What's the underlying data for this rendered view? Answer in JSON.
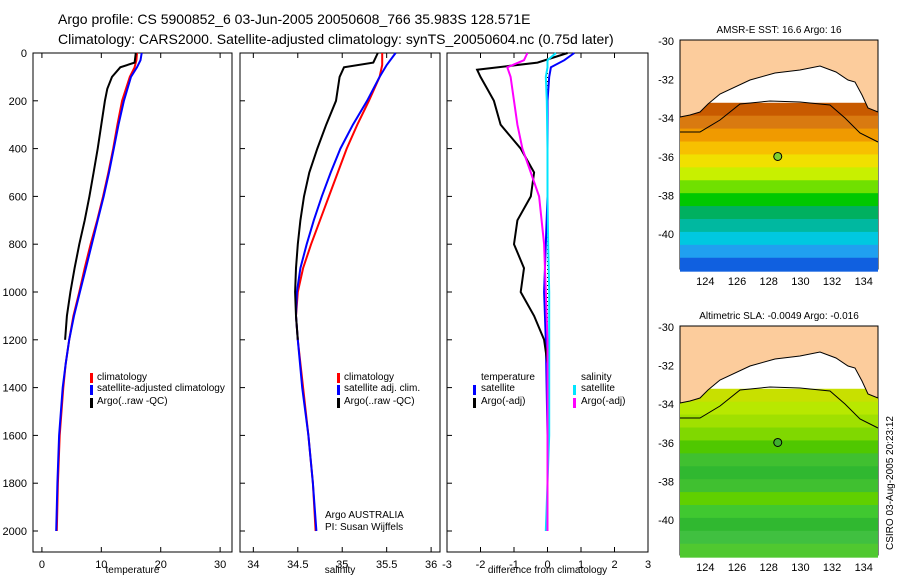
{
  "title_line1": "Argo profile: CS 5900852_6 03-Jun-2005 20050608_766 35.983S 128.571E",
  "title_line2": "Climatology: CARS2000. Satellite-adjusted climatology: synTS_20050604.nc (0.75d later)",
  "side_label": "CSIRO 03-Aug-2005 20:23:12",
  "colors": {
    "climatology": "#ff0000",
    "satellite": "#0000ff",
    "argo": "#000000",
    "sal_satellite": "#00e5ff",
    "sal_argo": "#ff00ff"
  },
  "chart_data": [
    {
      "type": "line",
      "xlabel": "temperature",
      "ylabel": "",
      "xlim": [
        -1.5,
        32
      ],
      "ylim": [
        2050,
        0
      ],
      "xticks": [
        "0",
        "10",
        "20",
        "30"
      ],
      "xtick_values": [
        0,
        10,
        20,
        30
      ],
      "yticks": [
        "0",
        "200",
        "400",
        "600",
        "800",
        "1000",
        "1200",
        "1400",
        "1600",
        "1800",
        "2000"
      ],
      "ytick_values": [
        0,
        200,
        400,
        600,
        800,
        1000,
        1200,
        1400,
        1600,
        1800,
        2000
      ],
      "legend": [
        "climatology",
        "satellite-adjusted climatology",
        "Argo(..raw -QC)"
      ],
      "series": [
        {
          "name": "climatology",
          "color": "#ff0000",
          "depth": [
            0,
            30,
            60,
            100,
            200,
            300,
            400,
            500,
            600,
            700,
            800,
            900,
            1000,
            1100,
            1200,
            1300,
            1400,
            1600,
            1800,
            2000
          ],
          "values": [
            16.0,
            15.9,
            15.6,
            14.8,
            13.5,
            12.7,
            12.0,
            11.2,
            10.3,
            9.3,
            8.2,
            7.2,
            6.3,
            5.3,
            4.6,
            4.0,
            3.6,
            3.0,
            2.7,
            2.5
          ]
        },
        {
          "name": "satellite-adjusted climatology",
          "color": "#0000ff",
          "depth": [
            0,
            30,
            60,
            100,
            200,
            300,
            400,
            500,
            600,
            700,
            800,
            900,
            1000,
            1100,
            1200,
            1300,
            1400,
            1600,
            1800,
            2000
          ],
          "values": [
            16.8,
            16.6,
            16.0,
            15.0,
            13.8,
            12.9,
            12.1,
            11.3,
            10.4,
            9.4,
            8.4,
            7.4,
            6.4,
            5.4,
            4.6,
            4.0,
            3.5,
            2.9,
            2.6,
            2.4
          ]
        },
        {
          "name": "Argo(..raw -QC)",
          "color": "#000000",
          "depth": [
            0,
            40,
            60,
            100,
            150,
            200,
            300,
            400,
            500,
            600,
            700,
            800,
            900,
            1000,
            1100,
            1200
          ],
          "values": [
            15.8,
            15.6,
            13.2,
            11.8,
            11.0,
            10.6,
            10.0,
            9.4,
            8.7,
            8.0,
            7.2,
            6.3,
            5.5,
            4.8,
            4.2,
            3.9
          ]
        }
      ]
    },
    {
      "type": "line",
      "xlabel": "salinity",
      "xlim": [
        33.85,
        36.1
      ],
      "ylim": [
        2050,
        0
      ],
      "xticks": [
        "34",
        "34.5",
        "35",
        "35.5",
        "36"
      ],
      "xtick_values": [
        34,
        34.5,
        35,
        35.5,
        36
      ],
      "legend": [
        "climatology",
        "satellite adj. clim.",
        "Argo(..raw -QC)"
      ],
      "annotation": [
        "Argo AUSTRALIA",
        "PI: Susan Wijffels"
      ],
      "series": [
        {
          "name": "climatology",
          "color": "#ff0000",
          "depth": [
            0,
            50,
            100,
            200,
            300,
            400,
            500,
            600,
            700,
            800,
            900,
            1000,
            1100,
            1200,
            1400,
            1600,
            1800,
            2000
          ],
          "values": [
            35.45,
            35.45,
            35.42,
            35.3,
            35.17,
            35.05,
            34.95,
            34.85,
            34.75,
            34.65,
            34.56,
            34.5,
            34.48,
            34.5,
            34.56,
            34.62,
            34.67,
            34.7
          ]
        },
        {
          "name": "satellite adj. clim.",
          "color": "#0000ff",
          "depth": [
            0,
            50,
            100,
            200,
            300,
            400,
            500,
            600,
            700,
            800,
            900,
            1000,
            1100,
            1200,
            1400,
            1600,
            1800,
            2000
          ],
          "values": [
            35.6,
            35.5,
            35.42,
            35.28,
            35.12,
            34.98,
            34.87,
            34.77,
            34.68,
            34.6,
            34.53,
            34.49,
            34.48,
            34.5,
            34.55,
            34.62,
            34.67,
            34.71
          ]
        },
        {
          "name": "Argo(..raw -QC)",
          "color": "#000000",
          "depth": [
            0,
            40,
            60,
            100,
            200,
            300,
            400,
            500,
            600,
            700,
            800,
            900,
            1000,
            1100,
            1200
          ],
          "values": [
            35.4,
            35.35,
            35.02,
            34.97,
            34.93,
            34.82,
            34.72,
            34.63,
            34.57,
            34.53,
            34.5,
            34.48,
            34.47,
            34.48,
            34.5
          ]
        }
      ]
    },
    {
      "type": "line",
      "xlabel": "difference from climatology",
      "xlim": [
        -3,
        3
      ],
      "ylim": [
        2050,
        0
      ],
      "xticks": [
        "-3",
        "-2",
        "-1",
        "0",
        "1",
        "2",
        "3"
      ],
      "xtick_values": [
        -3,
        -2,
        -1,
        0,
        1,
        2,
        3
      ],
      "legend_temperature": {
        "heading": "temperature",
        "items": [
          "satellite",
          "Argo(-adj)"
        ]
      },
      "legend_salinity": {
        "heading": "salinity",
        "items": [
          "satellite",
          "Argo(-adj)"
        ]
      },
      "series": [
        {
          "name": "temperature satellite",
          "color": "#0000ff",
          "depth": [
            0,
            30,
            60,
            100,
            200,
            400,
            600,
            800,
            1000,
            1200,
            1600,
            2000
          ],
          "values": [
            0.8,
            0.5,
            0.1,
            0.05,
            0.0,
            0.0,
            0.0,
            -0.05,
            -0.1,
            -0.05,
            0.0,
            0.0
          ]
        },
        {
          "name": "temperature Argo(-adj)",
          "color": "#000000",
          "depth": [
            0,
            40,
            70,
            100,
            150,
            200,
            300,
            400,
            500,
            600,
            700,
            800,
            900,
            1000,
            1100,
            1200,
            1300
          ],
          "values": [
            0.6,
            -0.3,
            -2.1,
            -2.0,
            -1.8,
            -1.6,
            -1.4,
            -0.8,
            -0.4,
            -0.5,
            -0.9,
            -1.0,
            -0.7,
            -0.8,
            -0.4,
            -0.1,
            0.0
          ]
        },
        {
          "name": "salinity satellite",
          "color": "#00e5ff",
          "depth": [
            0,
            30,
            60,
            100,
            200,
            400,
            600,
            800,
            1000,
            1200,
            1600,
            2000
          ],
          "values": [
            0.25,
            0.0,
            0.0,
            -0.05,
            -0.02,
            0.0,
            0.0,
            0.02,
            0.05,
            0.05,
            0.05,
            -0.05
          ]
        },
        {
          "name": "salinity Argo(-adj)",
          "color": "#ff00ff",
          "depth": [
            0,
            30,
            60,
            100,
            200,
            300,
            400,
            500,
            600,
            800,
            1000,
            1200,
            1400,
            2000
          ],
          "values": [
            -0.6,
            -0.7,
            -1.2,
            -1.1,
            -1.0,
            -0.9,
            -0.75,
            -0.5,
            -0.25,
            -0.1,
            -0.05,
            0.0,
            0.0,
            0.0
          ]
        }
      ]
    },
    {
      "type": "heatmap",
      "title": "AMSR-E SST: 16.6 Argo: 16",
      "xlim": [
        122.4,
        134.9
      ],
      "ylim": [
        -41.9,
        -30
      ],
      "xticks": [
        "124",
        "126",
        "128",
        "130",
        "132",
        "134"
      ],
      "xtick_values": [
        124,
        126,
        128,
        130,
        132,
        134
      ],
      "yticks": [
        "-30",
        "-32",
        "-34",
        "-36",
        "-38",
        "-40"
      ],
      "ytick_values": [
        -30,
        -32,
        -34,
        -36,
        -38,
        -40
      ],
      "argo_position": [
        128.571,
        -35.983
      ]
    },
    {
      "type": "heatmap",
      "title": "Altimetric SLA: -0.0049 Argo: -0.016",
      "xlim": [
        122.4,
        134.9
      ],
      "ylim": [
        -41.9,
        -30
      ],
      "xticks": [
        "124",
        "126",
        "128",
        "130",
        "132",
        "134"
      ],
      "xtick_values": [
        124,
        126,
        128,
        130,
        132,
        134
      ],
      "yticks": [
        "-30",
        "-32",
        "-34",
        "-36",
        "-38",
        "-40"
      ],
      "ytick_values": [
        -30,
        -32,
        -34,
        -36,
        -38,
        -40
      ],
      "argo_position": [
        128.571,
        -35.983
      ]
    }
  ]
}
